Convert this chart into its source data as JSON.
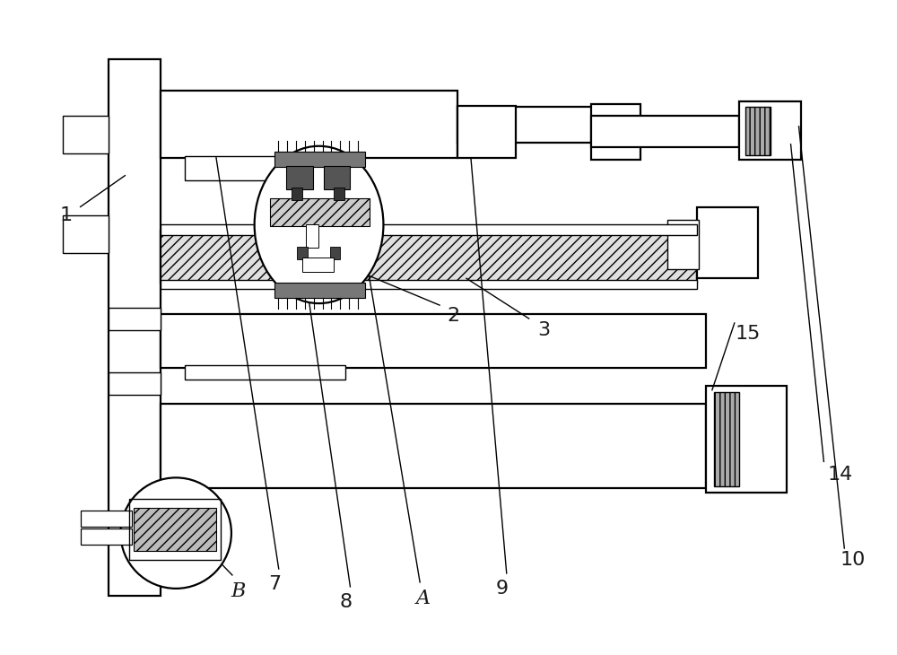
{
  "bg_color": "#ffffff",
  "line_color": "#000000",
  "figsize": [
    10.0,
    7.3
  ],
  "dpi": 100,
  "lw_main": 1.6,
  "lw_thin": 1.0,
  "label_fontsize": 16
}
